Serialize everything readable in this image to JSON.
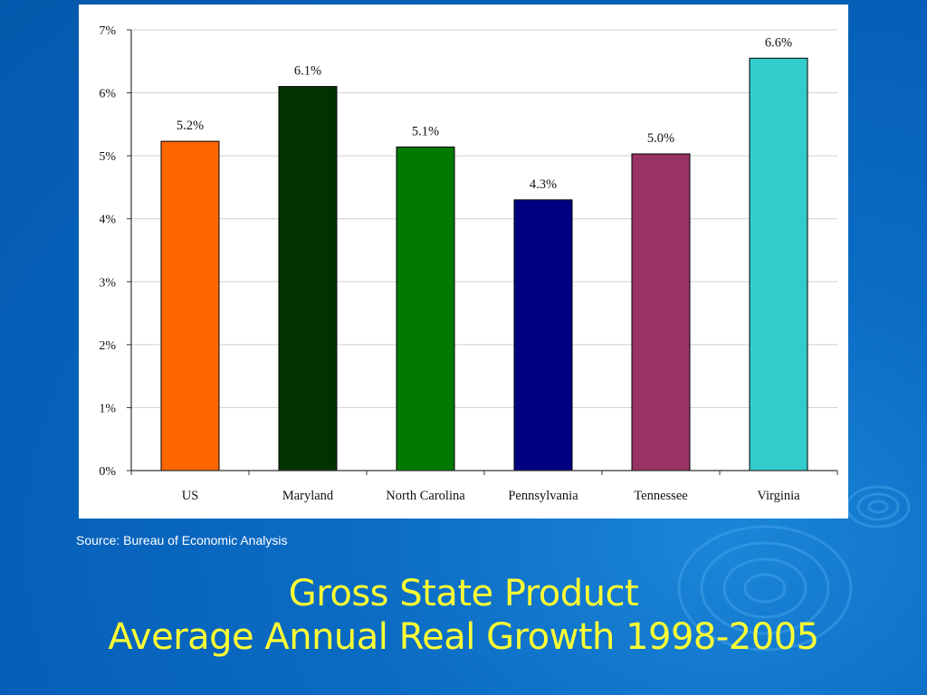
{
  "slide": {
    "title_line1": "Gross State Product",
    "title_line2": "Average Annual Real Growth 1998-2005",
    "source": "Source: Bureau of Economic Analysis"
  },
  "colors": {
    "background": "#0660b8",
    "title": "#ffff33"
  },
  "chart_data": {
    "type": "bar",
    "categories": [
      "US",
      "Maryland",
      "North Carolina",
      "Pennsylvania",
      "Tennessee",
      "Virginia"
    ],
    "values": [
      5.23,
      6.1,
      5.14,
      4.3,
      5.03,
      6.55
    ],
    "data_labels": [
      "5.2%",
      "6.1%",
      "5.1%",
      "4.3%",
      "5.0%",
      "6.6%"
    ],
    "bar_colors": [
      "#ff6600",
      "#003300",
      "#007a00",
      "#000080",
      "#993366",
      "#33cccc"
    ],
    "ylim": [
      0,
      7
    ],
    "y_ticks": [
      0,
      1,
      2,
      3,
      4,
      5,
      6,
      7
    ],
    "y_tick_labels": [
      "0%",
      "1%",
      "2%",
      "3%",
      "4%",
      "5%",
      "6%",
      "7%"
    ],
    "grid": true,
    "legend": false
  }
}
